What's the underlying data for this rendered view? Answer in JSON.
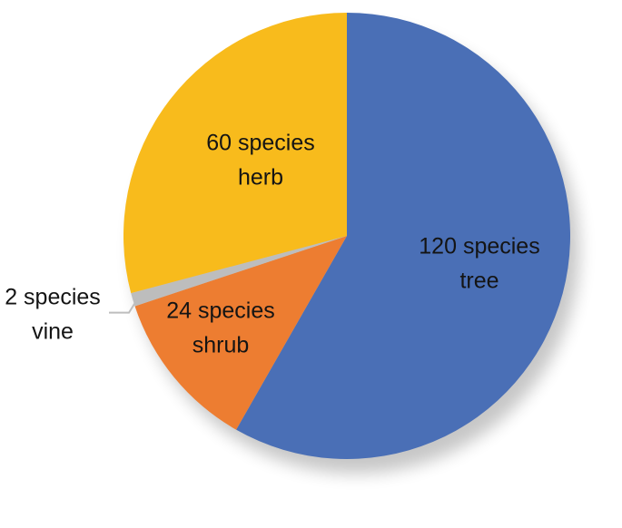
{
  "chart_data": {
    "type": "pie",
    "start_angle_deg": 0,
    "direction": "clockwise",
    "legend": "none",
    "slices": [
      {
        "category": "tree",
        "value": 120,
        "color": "#4A6FB6",
        "label_lines": [
          "120 species",
          "tree"
        ]
      },
      {
        "category": "shrub",
        "value": 24,
        "color": "#ED7D31",
        "label_lines": [
          "24 species",
          "shrub"
        ]
      },
      {
        "category": "vine",
        "value": 2,
        "color": "#BDBDBD",
        "label_lines": [
          "2 species",
          "vine"
        ]
      },
      {
        "category": "herb",
        "value": 60,
        "color": "#F8BB1C",
        "label_lines": [
          "60 species",
          "herb"
        ]
      }
    ]
  }
}
